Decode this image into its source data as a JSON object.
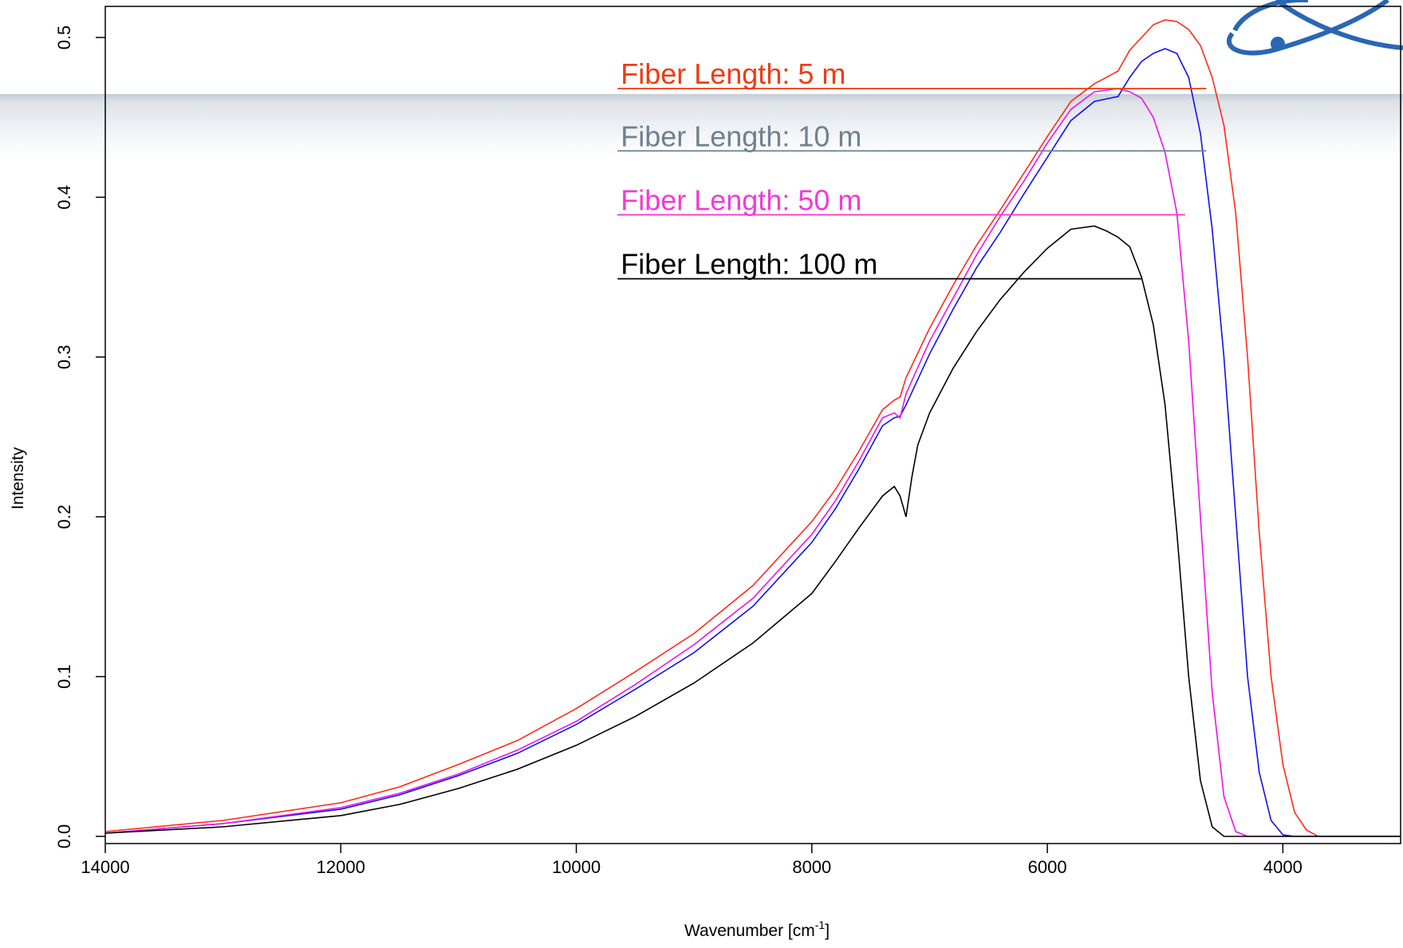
{
  "chart_data": {
    "type": "line",
    "title": "",
    "xlabel": "Wavenumber  [cm",
    "xlabel_sup": "-1",
    "xlabel_close": "]",
    "ylabel": "Intensity",
    "xlim": [
      14000,
      3000
    ],
    "ylim": [
      0.0,
      0.52
    ],
    "x_reversed": true,
    "grid": false,
    "legend_placement": "top-center",
    "xticks": [
      14000,
      12000,
      10000,
      8000,
      6000,
      4000
    ],
    "xtick_labels": [
      "14000",
      "12000",
      "10000",
      "8000",
      "6000",
      "4000"
    ],
    "yticks": [
      0.0,
      0.1,
      0.2,
      0.3,
      0.4,
      0.5
    ],
    "ytick_labels": [
      "0.0",
      "0.1",
      "0.2",
      "0.3",
      "0.4",
      "0.5"
    ],
    "series": [
      {
        "name": "Fiber Length: 5 m",
        "color": "#ff2a1a",
        "label_color": "#f03a12",
        "x": [
          14000,
          13000,
          12000,
          11500,
          11000,
          10500,
          10000,
          9500,
          9000,
          8500,
          8000,
          7800,
          7600,
          7400,
          7300,
          7250,
          7200,
          7000,
          6800,
          6600,
          6400,
          6200,
          6000,
          5800,
          5600,
          5400,
          5300,
          5200,
          5100,
          5000,
          4900,
          4800,
          4700,
          4600,
          4500,
          4400,
          4300,
          4200,
          4100,
          4000,
          3900,
          3800,
          3700,
          3000
        ],
        "y": [
          0.003,
          0.01,
          0.021,
          0.031,
          0.045,
          0.06,
          0.08,
          0.103,
          0.127,
          0.157,
          0.197,
          0.217,
          0.241,
          0.267,
          0.273,
          0.275,
          0.287,
          0.318,
          0.345,
          0.37,
          0.392,
          0.415,
          0.438,
          0.46,
          0.471,
          0.479,
          0.492,
          0.5,
          0.508,
          0.511,
          0.51,
          0.505,
          0.495,
          0.475,
          0.445,
          0.39,
          0.3,
          0.19,
          0.1,
          0.045,
          0.015,
          0.004,
          0.0,
          0.0
        ]
      },
      {
        "name": "Fiber Length: 10 m",
        "color": "#1010ee",
        "label_color": "#6e8190",
        "x": [
          14000,
          13000,
          12000,
          11500,
          11000,
          10500,
          10000,
          9500,
          9000,
          8500,
          8000,
          7800,
          7600,
          7400,
          7300,
          7250,
          7200,
          7000,
          6800,
          6600,
          6400,
          6200,
          6000,
          5800,
          5600,
          5400,
          5300,
          5200,
          5100,
          5000,
          4900,
          4800,
          4700,
          4600,
          4500,
          4400,
          4300,
          4200,
          4100,
          4000,
          3900,
          3000
        ],
        "y": [
          0.002,
          0.008,
          0.017,
          0.026,
          0.038,
          0.052,
          0.07,
          0.092,
          0.115,
          0.144,
          0.184,
          0.205,
          0.23,
          0.257,
          0.262,
          0.263,
          0.27,
          0.302,
          0.33,
          0.356,
          0.378,
          0.402,
          0.425,
          0.448,
          0.46,
          0.463,
          0.475,
          0.485,
          0.49,
          0.493,
          0.49,
          0.475,
          0.44,
          0.38,
          0.3,
          0.2,
          0.1,
          0.04,
          0.01,
          0.001,
          0.0,
          0.0
        ]
      },
      {
        "name": "Fiber Length: 50 m",
        "color": "#ee10ee",
        "label_color": "#f23ad6",
        "x": [
          14000,
          13000,
          12000,
          11500,
          11000,
          10500,
          10000,
          9500,
          9000,
          8500,
          8000,
          7800,
          7600,
          7400,
          7300,
          7250,
          7200,
          7000,
          6800,
          6600,
          6400,
          6200,
          6000,
          5800,
          5600,
          5400,
          5300,
          5200,
          5100,
          5000,
          4900,
          4800,
          4700,
          4600,
          4500,
          4400,
          4300,
          3000
        ],
        "y": [
          0.002,
          0.008,
          0.018,
          0.027,
          0.039,
          0.054,
          0.072,
          0.095,
          0.12,
          0.149,
          0.189,
          0.21,
          0.235,
          0.262,
          0.265,
          0.262,
          0.277,
          0.31,
          0.337,
          0.364,
          0.388,
          0.41,
          0.434,
          0.455,
          0.466,
          0.468,
          0.466,
          0.462,
          0.45,
          0.428,
          0.39,
          0.31,
          0.2,
          0.09,
          0.025,
          0.003,
          0.0,
          0.0
        ]
      },
      {
        "name": "Fiber Length: 100 m",
        "color": "#000000",
        "label_color": "#000000",
        "x": [
          14000,
          13000,
          12000,
          11500,
          11000,
          10500,
          10000,
          9500,
          9000,
          8500,
          8000,
          7800,
          7600,
          7400,
          7300,
          7250,
          7200,
          7150,
          7100,
          7000,
          6800,
          6600,
          6400,
          6200,
          6000,
          5800,
          5600,
          5500,
          5400,
          5300,
          5200,
          5100,
          5000,
          4900,
          4800,
          4700,
          4600,
          4500,
          4400,
          3000
        ],
        "y": [
          0.002,
          0.006,
          0.013,
          0.02,
          0.03,
          0.042,
          0.057,
          0.075,
          0.096,
          0.121,
          0.152,
          0.172,
          0.193,
          0.213,
          0.219,
          0.213,
          0.2,
          0.225,
          0.245,
          0.265,
          0.293,
          0.316,
          0.336,
          0.353,
          0.368,
          0.38,
          0.382,
          0.379,
          0.375,
          0.369,
          0.35,
          0.32,
          0.27,
          0.19,
          0.1,
          0.035,
          0.006,
          0.0,
          0.0,
          0.0
        ]
      }
    ]
  }
}
